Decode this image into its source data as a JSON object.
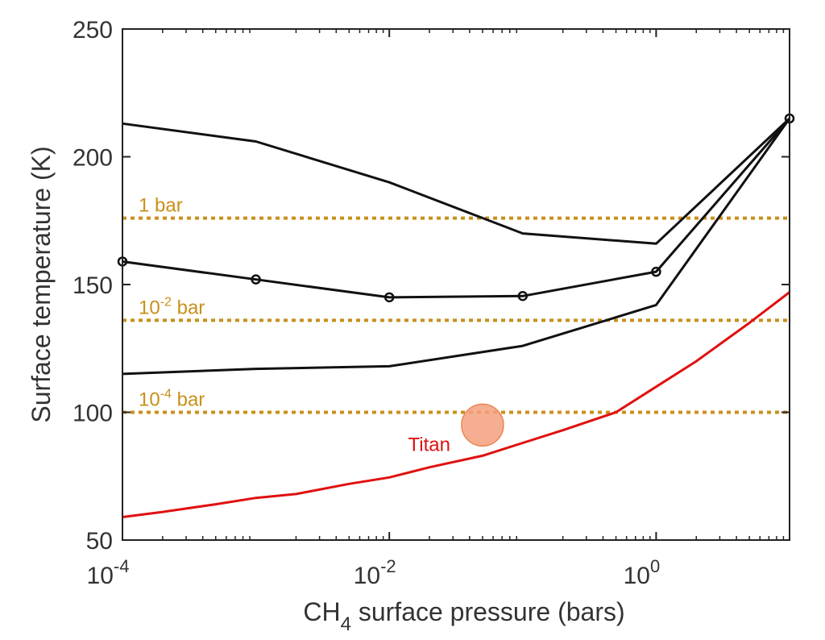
{
  "chart_data": {
    "type": "line",
    "x_scale": "log",
    "xlim": [
      0.0001,
      10
    ],
    "ylim": [
      50,
      250
    ],
    "xlabel": {
      "main": "CH",
      "sub": "4",
      "rest": " surface pressure (bars)"
    },
    "ylabel": "Surface temperature (K)",
    "x_ticks": [
      {
        "value": 0.0001,
        "base": "10",
        "exp": "-4"
      },
      {
        "value": 0.01,
        "base": "10",
        "exp": "-2"
      },
      {
        "value": 1,
        "base": "10",
        "exp": "0"
      }
    ],
    "y_ticks": [
      50,
      100,
      150,
      200,
      250
    ],
    "grid": false,
    "series": [
      {
        "color": "#111111",
        "markers": false,
        "points": [
          [
            0.0001,
            213
          ],
          [
            0.001,
            206
          ],
          [
            0.01,
            190
          ],
          [
            0.1,
            170
          ],
          [
            1,
            166
          ],
          [
            10,
            215
          ]
        ]
      },
      {
        "color": "#111111",
        "markers": true,
        "points": [
          [
            0.0001,
            159
          ],
          [
            0.001,
            152
          ],
          [
            0.01,
            145
          ],
          [
            0.1,
            145.5
          ],
          [
            1,
            155
          ],
          [
            10,
            215
          ]
        ]
      },
      {
        "color": "#111111",
        "markers": false,
        "points": [
          [
            0.0001,
            115
          ],
          [
            0.001,
            117
          ],
          [
            0.01,
            118
          ],
          [
            0.1,
            126
          ],
          [
            1,
            142
          ],
          [
            10,
            215
          ]
        ]
      },
      {
        "color": "#e01010",
        "markers": false,
        "points": [
          [
            0.0001,
            59
          ],
          [
            0.0002,
            61
          ],
          [
            0.0005,
            64
          ],
          [
            0.001,
            66.5
          ],
          [
            0.002,
            68
          ],
          [
            0.005,
            72
          ],
          [
            0.01,
            74.5
          ],
          [
            0.02,
            78.5
          ],
          [
            0.05,
            83
          ],
          [
            0.1,
            88
          ],
          [
            0.2,
            93
          ],
          [
            0.5,
            100
          ],
          [
            1,
            110
          ],
          [
            2,
            120
          ],
          [
            5,
            135
          ],
          [
            10,
            147
          ]
        ]
      }
    ],
    "reference_lines": [
      {
        "y": 176,
        "label": "1 bar",
        "color": "#c8901a"
      },
      {
        "y": 136,
        "label": "10",
        "label_exp": "-2",
        "label_rest": " bar",
        "color": "#c8901a"
      },
      {
        "y": 100,
        "label": "10",
        "label_exp": "-4",
        "label_rest": " bar",
        "color": "#c8901a"
      }
    ],
    "annotations": [
      {
        "label": "Titan",
        "x": 0.05,
        "y": 95,
        "marker_color": "#f4a080",
        "label_color": "#e01010"
      }
    ]
  }
}
